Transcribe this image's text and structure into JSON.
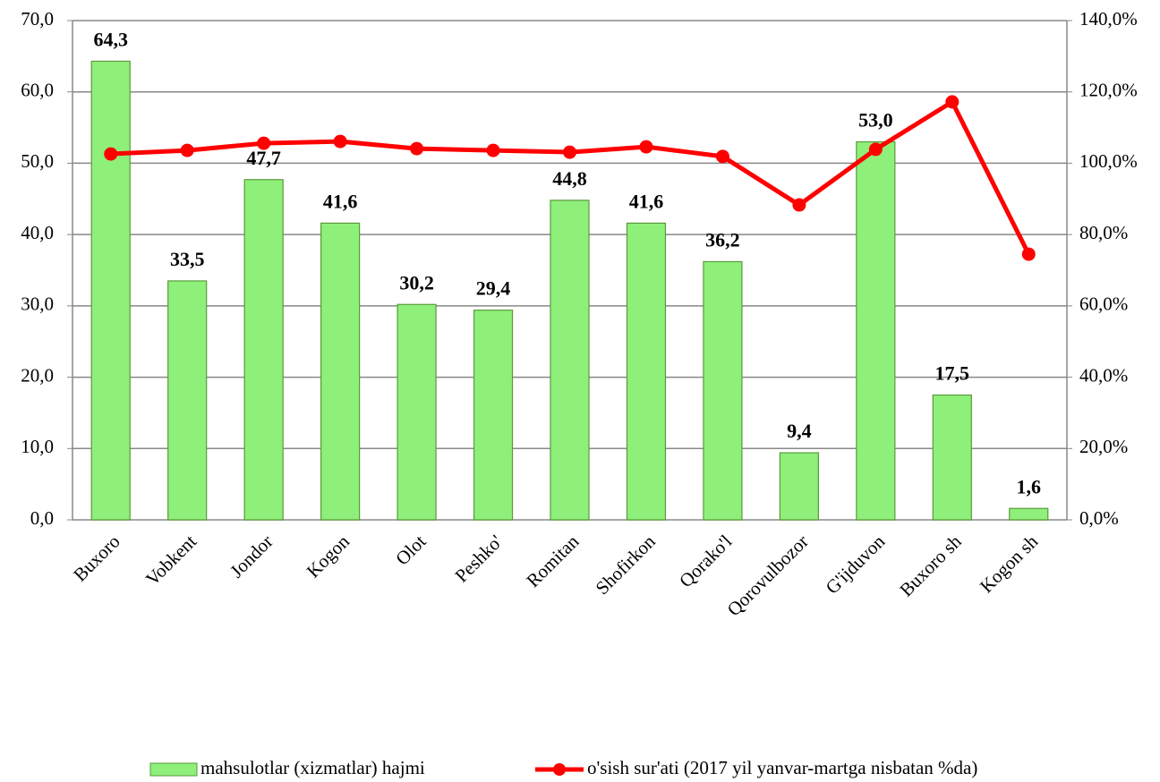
{
  "chart_data": {
    "type": "bar_line",
    "categories": [
      "Buxoro",
      "Vobkent",
      "Jondor",
      "Kogon",
      "Olot",
      "Peshko'",
      "Romitan",
      "Shofirkon",
      "Qorako'l",
      "Qorovulbozor",
      "G'ijduvon",
      "Buxoro sh",
      "Kogon sh"
    ],
    "series": [
      {
        "name": "mahsulotlar (xizmatlar) hajmi",
        "type": "bar",
        "axis": "y",
        "color": "#8ef07a",
        "values": [
          64.3,
          33.5,
          47.7,
          41.6,
          30.2,
          29.4,
          44.8,
          41.6,
          36.2,
          9.4,
          53.0,
          17.5,
          1.6
        ],
        "value_labels": [
          "64,3",
          "33,5",
          "47,7",
          "41,6",
          "30,2",
          "29,4",
          "44,8",
          "41,6",
          "36,2",
          "9,4",
          "53,0",
          "17,5",
          "1,6"
        ]
      },
      {
        "name": "o'sish sur'ati (2017 yil yanvar-martga nisbatan %da)",
        "type": "line",
        "axis": "y2",
        "color": "#ff0000",
        "values": [
          102.6,
          103.6,
          105.6,
          106.1,
          104.1,
          103.6,
          103.1,
          104.6,
          101.9,
          88.3,
          103.9,
          117.2,
          74.5
        ]
      }
    ],
    "ylim": [
      0,
      70
    ],
    "yticks": [
      {
        "value": 0,
        "label": "0,0"
      },
      {
        "value": 10,
        "label": "10,0"
      },
      {
        "value": 20,
        "label": "20,0"
      },
      {
        "value": 30,
        "label": "30,0"
      },
      {
        "value": 40,
        "label": "40,0"
      },
      {
        "value": 50,
        "label": "50,0"
      },
      {
        "value": 60,
        "label": "60,0"
      },
      {
        "value": 70,
        "label": "70,0"
      }
    ],
    "y2lim": [
      0,
      140
    ],
    "y2ticks": [
      {
        "value": 0,
        "label": "0,0%"
      },
      {
        "value": 20,
        "label": "20,0%"
      },
      {
        "value": 40,
        "label": "40,0%"
      },
      {
        "value": 60,
        "label": "60,0%"
      },
      {
        "value": 80,
        "label": "80,0%"
      },
      {
        "value": 100,
        "label": "100,0%"
      },
      {
        "value": 120,
        "label": "120,0%"
      },
      {
        "value": 140,
        "label": "140,0%"
      }
    ],
    "grid": true,
    "legend": "bottom"
  }
}
